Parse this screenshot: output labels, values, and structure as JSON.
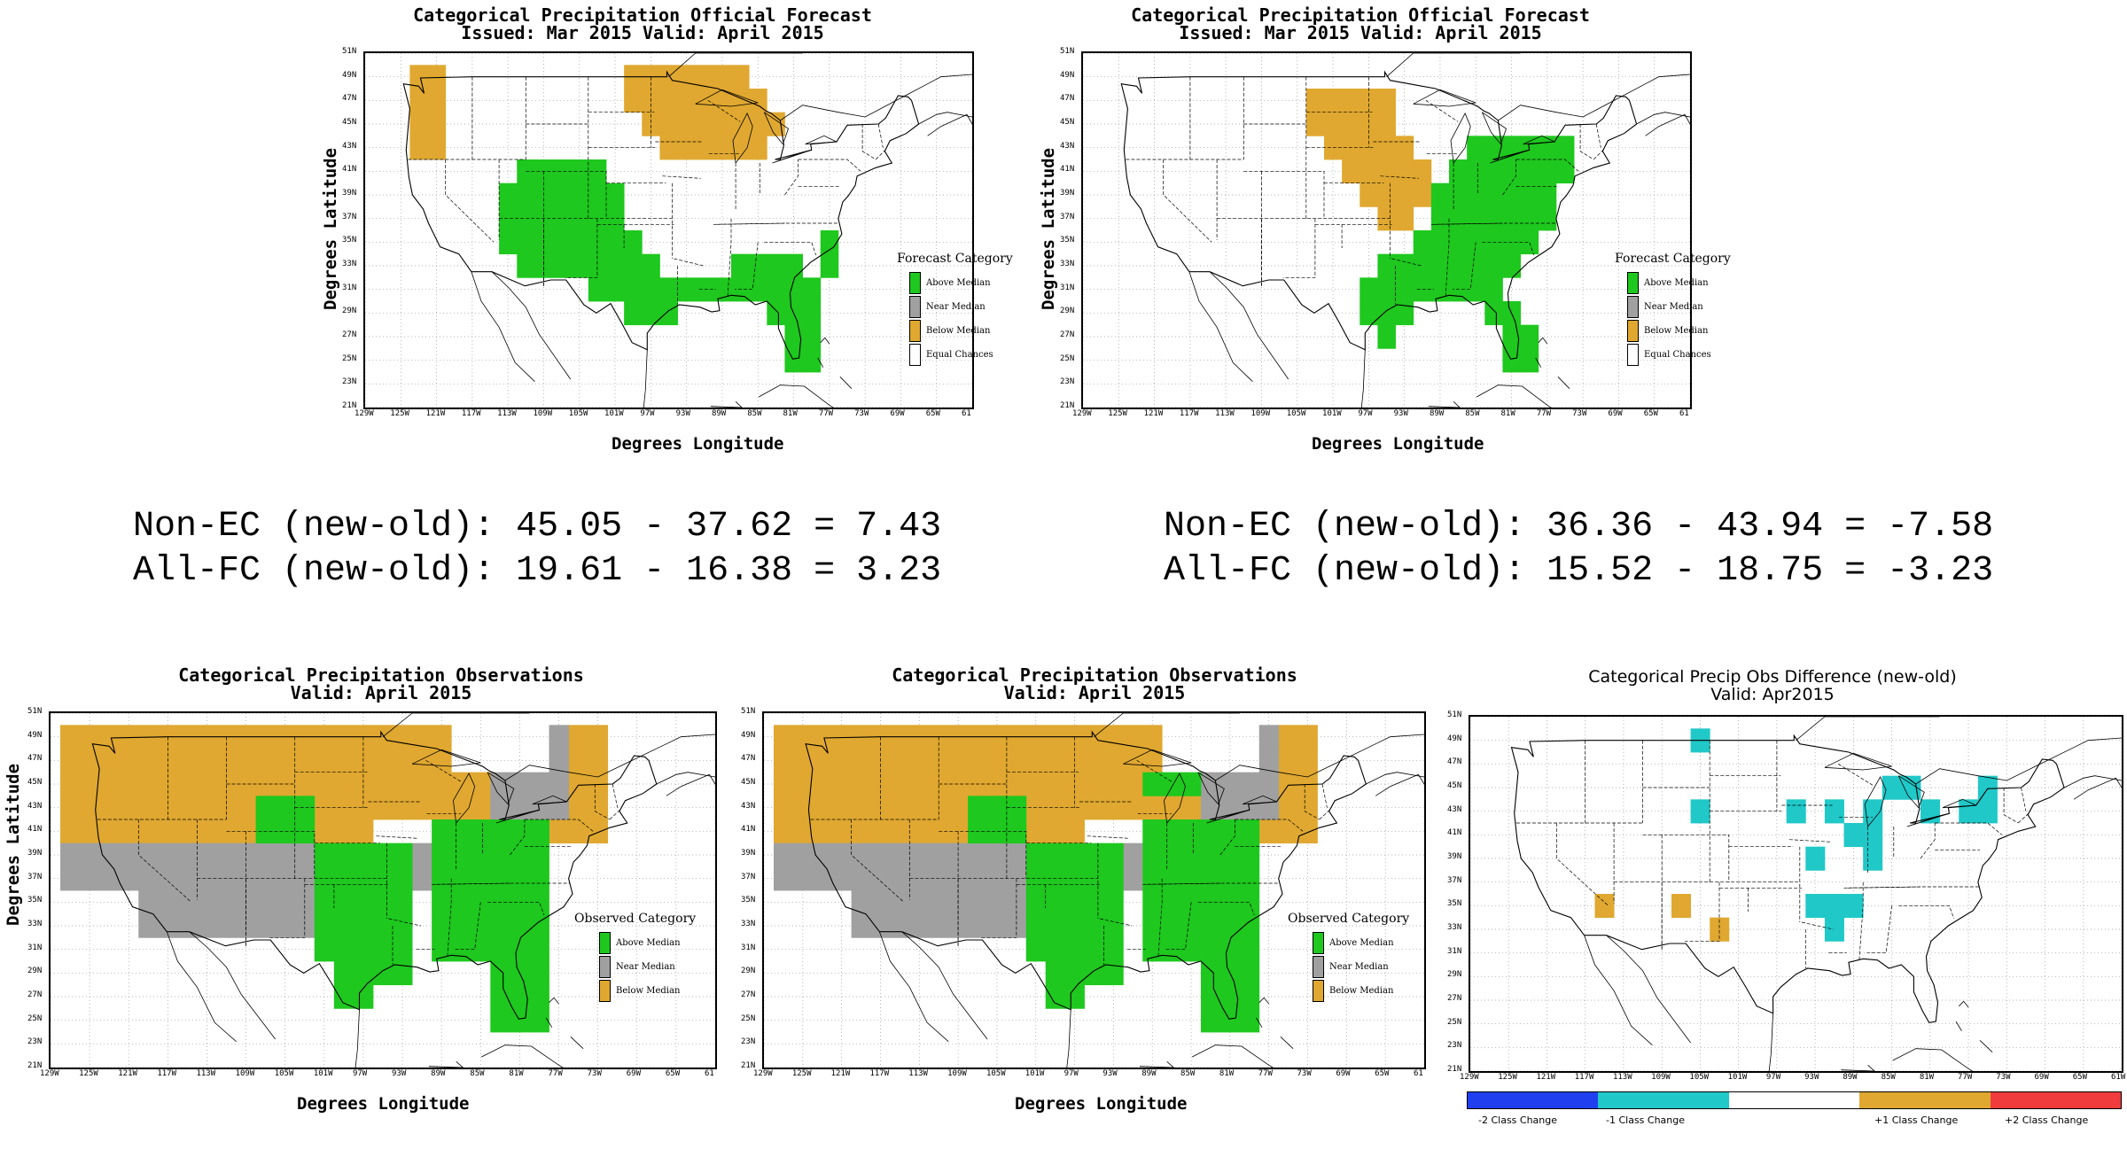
{
  "colors": {
    "above": "#1ec81e",
    "near": "#a0a0a0",
    "below": "#e0a830",
    "equal": "#ffffff",
    "minus2": "#2040f0",
    "minus1": "#20c8c8",
    "plus1": "#e0a830",
    "plus2": "#f03c3c"
  },
  "axes": {
    "lat_ticks": [
      "51N",
      "49N",
      "47N",
      "45N",
      "43N",
      "41N",
      "39N",
      "37N",
      "35N",
      "33N",
      "31N",
      "29N",
      "27N",
      "25N",
      "23N",
      "21N"
    ],
    "lon_ticks": [
      "129W",
      "125W",
      "121W",
      "117W",
      "113W",
      "109W",
      "105W",
      "101W",
      "97W",
      "93W",
      "89W",
      "85W",
      "81W",
      "77W",
      "73W",
      "69W",
      "65W",
      "61"
    ],
    "lon_ticks_diff": [
      "129W",
      "125W",
      "121W",
      "117W",
      "113W",
      "109W",
      "105W",
      "101W",
      "97W",
      "93W",
      "89W",
      "85W",
      "81W",
      "77W",
      "73W",
      "69W",
      "65W",
      "61W"
    ],
    "ylabel": "Degrees Latitude",
    "xlabel": "Degrees Longitude"
  },
  "panels": {
    "fc_new": {
      "title1": "Categorical Precipitation Official Forecast",
      "title2": "Issued: Mar 2015 Valid: April 2015",
      "legend_title": "Forecast Category",
      "legend": [
        "Above Median",
        "Near Median",
        "Below Median",
        "Equal Chances"
      ]
    },
    "fc_old": {
      "title1": "Categorical Precipitation Official Forecast",
      "title2": "Issued: Mar 2015 Valid: April 2015",
      "legend_title": "Forecast Category",
      "legend": [
        "Above Median",
        "Near Median",
        "Below Median",
        "Equal Chances"
      ]
    },
    "obs_new": {
      "title1": "Categorical Precipitation Observations",
      "title2": "Valid: April 2015",
      "legend_title": "Observed Category",
      "legend": [
        "Above Median",
        "Near Median",
        "Below Median"
      ]
    },
    "obs_old": {
      "title1": "Categorical Precipitation Observations",
      "title2": "Valid: April 2015",
      "legend_title": "Observed Category",
      "legend": [
        "Above Median",
        "Near Median",
        "Below Median"
      ]
    },
    "diff": {
      "title1": "Categorical Precip Obs Difference (new-old)",
      "title2": "Valid: Apr2015",
      "colorbar": [
        "-2 Class Change",
        "-1 Class Change",
        "+1 Class Change",
        "+2 Class Change"
      ]
    }
  },
  "stats": {
    "left_line1": "Non-EC (new-old): 45.05 - 37.62 = 7.43",
    "left_line2": "All-FC (new-old): 19.61 - 16.38 = 3.23",
    "right_line1": "Non-EC (new-old): 36.36 - 43.94 = -7.58",
    "right_line2": "All-FC (new-old): 15.52 - 18.75 = -3.23"
  },
  "grids": {
    "fc_new": {
      "below": [
        [
          -123,
          49
        ],
        [
          -121,
          49
        ],
        [
          -123,
          47
        ],
        [
          -121,
          47
        ],
        [
          -123,
          45
        ],
        [
          -121,
          45
        ],
        [
          -123,
          43
        ],
        [
          -121,
          43
        ],
        [
          -99,
          49
        ],
        [
          -97,
          49
        ],
        [
          -95,
          49
        ],
        [
          -93,
          49
        ],
        [
          -91,
          49
        ],
        [
          -89,
          49
        ],
        [
          -87,
          49
        ],
        [
          -99,
          47
        ],
        [
          -97,
          47
        ],
        [
          -95,
          47
        ],
        [
          -93,
          47
        ],
        [
          -91,
          47
        ],
        [
          -89,
          47
        ],
        [
          -87,
          47
        ],
        [
          -85,
          47
        ],
        [
          -97,
          45
        ],
        [
          -95,
          45
        ],
        [
          -93,
          45
        ],
        [
          -91,
          45
        ],
        [
          -89,
          45
        ],
        [
          -87,
          45
        ],
        [
          -85,
          45
        ],
        [
          -83,
          45
        ],
        [
          -95,
          43
        ],
        [
          -93,
          43
        ],
        [
          -91,
          43
        ],
        [
          -89,
          43
        ],
        [
          -87,
          43
        ],
        [
          -85,
          43
        ]
      ],
      "above": [
        [
          -111,
          41
        ],
        [
          -109,
          41
        ],
        [
          -107,
          41
        ],
        [
          -105,
          41
        ],
        [
          -103,
          41
        ],
        [
          -113,
          39
        ],
        [
          -111,
          39
        ],
        [
          -109,
          39
        ],
        [
          -107,
          39
        ],
        [
          -105,
          39
        ],
        [
          -103,
          39
        ],
        [
          -101,
          39
        ],
        [
          -113,
          37
        ],
        [
          -111,
          37
        ],
        [
          -109,
          37
        ],
        [
          -107,
          37
        ],
        [
          -105,
          37
        ],
        [
          -103,
          37
        ],
        [
          -101,
          37
        ],
        [
          -113,
          35
        ],
        [
          -111,
          35
        ],
        [
          -109,
          35
        ],
        [
          -107,
          35
        ],
        [
          -105,
          35
        ],
        [
          -103,
          35
        ],
        [
          -101,
          35
        ],
        [
          -99,
          35
        ],
        [
          -111,
          33
        ],
        [
          -109,
          33
        ],
        [
          -107,
          33
        ],
        [
          -105,
          33
        ],
        [
          -103,
          33
        ],
        [
          -101,
          33
        ],
        [
          -99,
          33
        ],
        [
          -97,
          33
        ],
        [
          -103,
          31
        ],
        [
          -101,
          31
        ],
        [
          -99,
          31
        ],
        [
          -97,
          31
        ],
        [
          -95,
          31
        ],
        [
          -93,
          31
        ],
        [
          -91,
          31
        ],
        [
          -89,
          31
        ],
        [
          -87,
          31
        ],
        [
          -85,
          31
        ],
        [
          -83,
          31
        ],
        [
          -81,
          31
        ],
        [
          -79,
          31
        ],
        [
          -99,
          29
        ],
        [
          -97,
          29
        ],
        [
          -95,
          29
        ],
        [
          -83,
          29
        ],
        [
          -81,
          29
        ],
        [
          -79,
          29
        ],
        [
          -81,
          27
        ],
        [
          -79,
          27
        ],
        [
          -81,
          25
        ],
        [
          -79,
          25
        ],
        [
          -87,
          33
        ],
        [
          -85,
          33
        ],
        [
          -83,
          33
        ],
        [
          -81,
          33
        ],
        [
          -77,
          33
        ],
        [
          -77,
          35
        ]
      ]
    },
    "fc_old": {
      "below": [
        [
          -103,
          47
        ],
        [
          -101,
          47
        ],
        [
          -99,
          47
        ],
        [
          -97,
          47
        ],
        [
          -95,
          47
        ],
        [
          -103,
          45
        ],
        [
          -101,
          45
        ],
        [
          -99,
          45
        ],
        [
          -97,
          45
        ],
        [
          -95,
          45
        ],
        [
          -101,
          43
        ],
        [
          -99,
          43
        ],
        [
          -97,
          43
        ],
        [
          -95,
          43
        ],
        [
          -93,
          43
        ],
        [
          -99,
          41
        ],
        [
          -97,
          41
        ],
        [
          -95,
          41
        ],
        [
          -93,
          41
        ],
        [
          -91,
          41
        ],
        [
          -97,
          39
        ],
        [
          -95,
          39
        ],
        [
          -93,
          39
        ],
        [
          -91,
          39
        ],
        [
          -95,
          37
        ],
        [
          -93,
          37
        ]
      ],
      "above": [
        [
          -85,
          43
        ],
        [
          -83,
          43
        ],
        [
          -81,
          43
        ],
        [
          -79,
          43
        ],
        [
          -77,
          43
        ],
        [
          -75,
          43
        ],
        [
          -87,
          41
        ],
        [
          -85,
          41
        ],
        [
          -83,
          41
        ],
        [
          -81,
          41
        ],
        [
          -79,
          41
        ],
        [
          -77,
          41
        ],
        [
          -75,
          41
        ],
        [
          -89,
          39
        ],
        [
          -87,
          39
        ],
        [
          -85,
          39
        ],
        [
          -83,
          39
        ],
        [
          -81,
          39
        ],
        [
          -79,
          39
        ],
        [
          -77,
          39
        ],
        [
          -89,
          37
        ],
        [
          -87,
          37
        ],
        [
          -85,
          37
        ],
        [
          -83,
          37
        ],
        [
          -81,
          37
        ],
        [
          -79,
          37
        ],
        [
          -77,
          37
        ],
        [
          -91,
          35
        ],
        [
          -89,
          35
        ],
        [
          -87,
          35
        ],
        [
          -85,
          35
        ],
        [
          -83,
          35
        ],
        [
          -81,
          35
        ],
        [
          -79,
          35
        ],
        [
          -95,
          33
        ],
        [
          -93,
          33
        ],
        [
          -91,
          33
        ],
        [
          -89,
          33
        ],
        [
          -87,
          33
        ],
        [
          -85,
          33
        ],
        [
          -83,
          33
        ],
        [
          -81,
          33
        ],
        [
          -97,
          31
        ],
        [
          -95,
          31
        ],
        [
          -93,
          31
        ],
        [
          -91,
          31
        ],
        [
          -89,
          31
        ],
        [
          -87,
          31
        ],
        [
          -85,
          31
        ],
        [
          -83,
          31
        ],
        [
          -97,
          29
        ],
        [
          -95,
          29
        ],
        [
          -93,
          29
        ],
        [
          -83,
          29
        ],
        [
          -81,
          29
        ],
        [
          -95,
          27
        ],
        [
          -81,
          27
        ],
        [
          -79,
          27
        ],
        [
          -81,
          25
        ],
        [
          -79,
          25
        ]
      ]
    },
    "diff": {
      "minus1": [
        [
          -105,
          49
        ],
        [
          -105,
          43
        ],
        [
          -95,
          43
        ],
        [
          -91,
          43
        ],
        [
          -87,
          43
        ],
        [
          -85,
          45
        ],
        [
          -83,
          45
        ],
        [
          -81,
          43
        ],
        [
          -77,
          43
        ],
        [
          -75,
          45
        ],
        [
          -75,
          43
        ],
        [
          -89,
          41
        ],
        [
          -87,
          41
        ],
        [
          -87,
          39
        ],
        [
          -93,
          39
        ],
        [
          -93,
          35
        ],
        [
          -91,
          35
        ],
        [
          -89,
          35
        ],
        [
          -91,
          33
        ]
      ],
      "plus1": [
        [
          -115,
          35
        ],
        [
          -107,
          35
        ],
        [
          -103,
          33
        ]
      ]
    }
  }
}
